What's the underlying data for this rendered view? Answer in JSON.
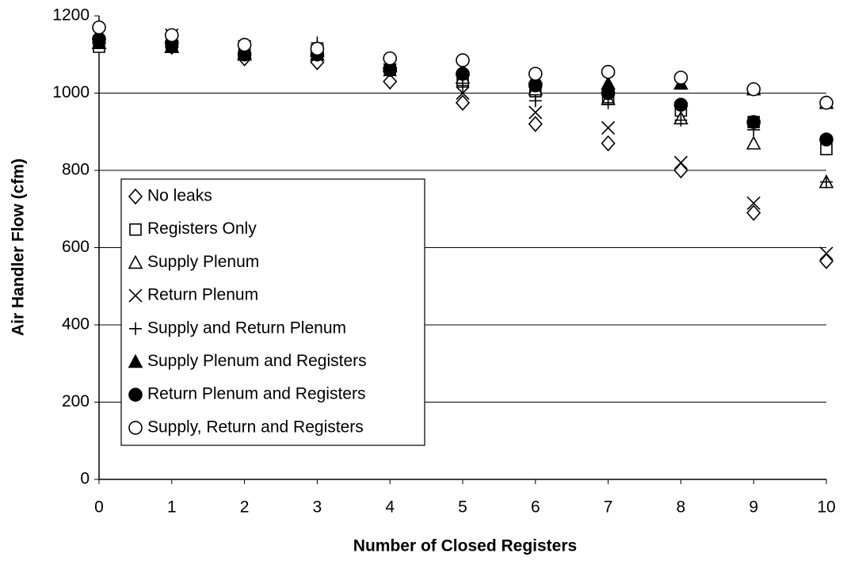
{
  "chart_data": {
    "type": "scatter",
    "x_label": "Number of Closed Registers",
    "y_label": "Air Handler Flow (cfm)",
    "x": [
      0,
      1,
      2,
      3,
      4,
      5,
      6,
      7,
      8,
      9,
      10
    ],
    "xlim": [
      0,
      10
    ],
    "xticks": [
      0,
      1,
      2,
      3,
      4,
      5,
      6,
      7,
      8,
      9,
      10
    ],
    "ylim": [
      0,
      1200
    ],
    "yticks": [
      0,
      200,
      400,
      600,
      800,
      1000,
      1200
    ],
    "grid": true,
    "series": [
      {
        "name": "No leaks",
        "color": "#000000",
        "marker": "diamond",
        "values": [
          1130,
          1120,
          1090,
          1080,
          1030,
          975,
          920,
          870,
          800,
          690,
          565
        ]
      },
      {
        "name": "Registers Only",
        "color": "#000000",
        "marker": "square",
        "values": [
          1120,
          1120,
          1100,
          1100,
          1060,
          1030,
          1005,
          985,
          955,
          925,
          855
        ]
      },
      {
        "name": "Supply Plenum",
        "color": "#000000",
        "marker": "triangle",
        "values": [
          1130,
          1120,
          1100,
          1100,
          1070,
          1040,
          1010,
          985,
          935,
          870,
          770
        ]
      },
      {
        "name": "Return Plenum",
        "color": "#000000",
        "marker": "x",
        "values": [
          1150,
          1150,
          1120,
          1110,
          1060,
          1000,
          950,
          910,
          820,
          715,
          585
        ]
      },
      {
        "name": "Supply and Return Plenum",
        "color": "#000000",
        "marker": "plus",
        "values": [
          1140,
          1130,
          1110,
          1130,
          1060,
          1020,
          980,
          975,
          930,
          905,
          770
        ]
      },
      {
        "name": "Supply Plenum and Registers",
        "color": "#000000",
        "marker": "triangle-filled",
        "values": [
          1130,
          1120,
          1100,
          1110,
          1080,
          1060,
          1040,
          1025,
          1025,
          1010,
          975
        ]
      },
      {
        "name": "Return Plenum and Registers",
        "color": "#000000",
        "marker": "circle-filled",
        "values": [
          1140,
          1130,
          1100,
          1100,
          1060,
          1050,
          1020,
          1000,
          970,
          925,
          880
        ]
      },
      {
        "name": "Supply, Return and Registers",
        "color": "#000000",
        "marker": "circle",
        "values": [
          1170,
          1150,
          1125,
          1115,
          1090,
          1085,
          1050,
          1055,
          1040,
          1010,
          975
        ]
      }
    ]
  }
}
